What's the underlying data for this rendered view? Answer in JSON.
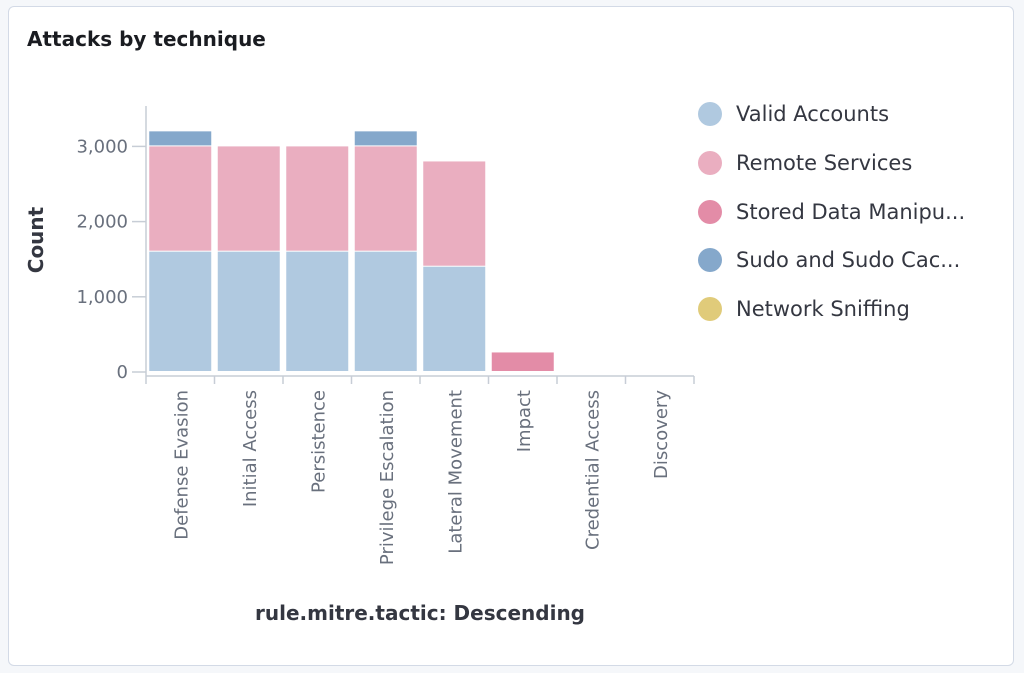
{
  "panel": {
    "title": "Attacks by technique"
  },
  "chart_data": {
    "type": "bar",
    "stacked": true,
    "title": "Attacks by technique",
    "xlabel": "rule.mitre.tactic: Descending",
    "ylabel": "Count",
    "ylim": [
      0,
      3400
    ],
    "yticks": [
      0,
      1000,
      2000,
      3000
    ],
    "ytick_labels": [
      "0",
      "1,000",
      "2,000",
      "3,000"
    ],
    "grid": false,
    "legend_position": "right",
    "categories": [
      "Defense Evasion",
      "Initial Access",
      "Persistence",
      "Privilege Escalation",
      "Lateral Movement",
      "Impact",
      "Credential Access",
      "Discovery"
    ],
    "series": [
      {
        "name": "Valid Accounts",
        "color": "#b0c9e0",
        "values": [
          1600,
          1600,
          1600,
          1600,
          1400,
          0,
          0,
          0
        ]
      },
      {
        "name": "Remote Services",
        "color": "#eaaec0",
        "values": [
          1400,
          1400,
          1400,
          1400,
          1400,
          0,
          0,
          0
        ]
      },
      {
        "name": "Stored Data Manipu...",
        "color": "#e38ca7",
        "values": [
          0,
          0,
          0,
          0,
          0,
          260,
          0,
          0
        ]
      },
      {
        "name": "Sudo and Sudo Cac...",
        "color": "#85a8cb",
        "values": [
          200,
          0,
          0,
          200,
          0,
          0,
          0,
          0
        ]
      },
      {
        "name": "Network Sniffing",
        "color": "#e0cb7a",
        "values": [
          0,
          0,
          0,
          0,
          0,
          0,
          0,
          0
        ]
      }
    ]
  }
}
